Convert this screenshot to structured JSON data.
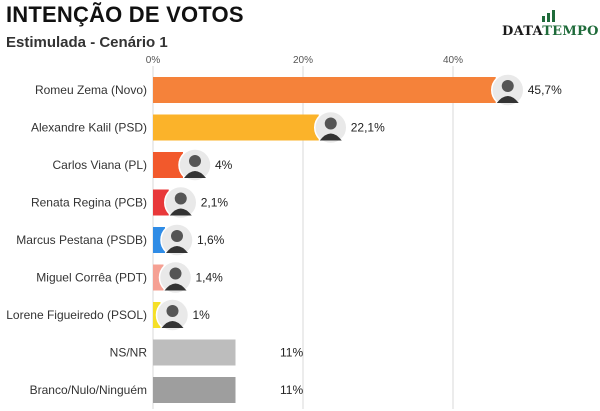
{
  "header": {
    "title": "INTENÇÃO DE VOTOS",
    "subtitle": "Estimulada - Cenário 1",
    "brand_part1": "DATA",
    "brand_part2": "TEMPO"
  },
  "colors": {
    "brand_green": "#1f6b3a",
    "grid": "#d9d9d9"
  },
  "chart_data": {
    "type": "bar",
    "orientation": "horizontal",
    "xlim": [
      0,
      48
    ],
    "ticks": [
      {
        "value": 0,
        "label": "0%"
      },
      {
        "value": 20,
        "label": "20%"
      },
      {
        "value": 40,
        "label": "40%"
      }
    ],
    "grid": true,
    "categories": [
      "Romeu Zema (Novo)",
      "Alexandre Kalil (PSD)",
      "Carlos Viana (PL)",
      "Renata Regina (PCB)",
      "Marcus Pestana (PSDB)",
      "Miguel Corrêa (PDT)",
      "Lorene Figueiredo (PSOL)",
      "NS/NR",
      "Branco/Nulo/Ninguém"
    ],
    "values": [
      45.7,
      22.1,
      4,
      2.1,
      1.6,
      1.4,
      1,
      11,
      11
    ],
    "value_labels": [
      "45,7%",
      "22,1%",
      "4%",
      "2,1%",
      "1,6%",
      "1,4%",
      "1%",
      "11%",
      "11%"
    ],
    "colors": [
      "#f5823a",
      "#fbb32a",
      "#f2592c",
      "#e8383a",
      "#2f8ce6",
      "#f5a093",
      "#f5df28",
      "#bdbdbd",
      "#9e9e9e"
    ],
    "has_photo": [
      true,
      true,
      true,
      true,
      true,
      true,
      true,
      false,
      false
    ]
  }
}
